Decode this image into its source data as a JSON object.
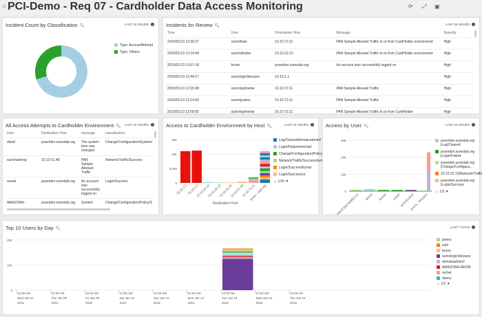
{
  "header": {
    "title": "PCI-Demo - Req 07 - Cardholder Data Access Monitoring",
    "icons": [
      "star-icon",
      "refresh-icon",
      "fullscreen-icon",
      "share-icon"
    ]
  },
  "incident_count": {
    "title": "Incident Count by Classification",
    "range": "LAST 24 HOURS",
    "chart_data": {
      "type": "pie",
      "donut": true,
      "slices": [
        {
          "label": "Type: Access/Attempt",
          "value": 70,
          "color": "#a6cee3"
        },
        {
          "label": "Type: Others",
          "value": 30,
          "color": "#2ca02c"
        }
      ]
    }
  },
  "incidents": {
    "title": "Incidents for Review",
    "range": "LAST 24 HOURS",
    "columns": [
      "Time",
      "User",
      "Destination Host",
      "Message",
      "Severity"
    ],
    "rows": [
      [
        "2015/01/13 13:29:27",
        "sumo\\ltran",
        "10.10.72.11",
        "PAN Sample Allowed Traffic to or from CardHolder environment",
        "High"
      ],
      [
        "2015/01/13 13:14:49",
        "sumo\\dhuber",
        "10.10.22.13",
        "PAN Sample Allowed Traffic to or from CardHolder environment",
        "High"
      ],
      [
        "2015/01/13 13:07:18",
        "bruno",
        "poseidon.sumolab.org",
        "An account was successfully logged on",
        "High"
      ],
      [
        "2015/01/13 12:44:17",
        "sumologic\\blozano",
        "10.10.1.1",
        "",
        "High"
      ],
      [
        "2015/01/13 12:29:48",
        "sumo\\kpimente",
        "10.10.72.11",
        "PAN Sample Allowed Traffic",
        "High"
      ],
      [
        "2015/01/13 12:14:56",
        "sumo\\jcarlos",
        "10.10.72.11",
        "PAN Sample Allowed Traffic",
        "High"
      ],
      [
        "2015/01/13 11:59:55",
        "sumo\\kpimente",
        "10.10.72.11",
        "PAN Sample Allowed Traffic to or from CardHolder",
        "High"
      ]
    ]
  },
  "attempts": {
    "title": "All Access Attempts to Cardholder Environment",
    "range": "LAST 24 HOURS",
    "columns": [
      "User",
      "Destination Host",
      "message",
      "classification"
    ],
    "rows": [
      [
        "david",
        "poseidon.sumolab.org",
        "The system time was changed",
        "Change/Configuration/System/"
      ],
      [
        "sumo\\atseng",
        "10.10.51.48",
        "PAN Sample Allowed Traffic",
        "Network/Traffic/Success"
      ],
      [
        "russel",
        "poseidon.sumolab.org",
        "An account was successfully logged on",
        "Login/Success"
      ],
      [
        "AMAZONA-",
        "poseidon.sumolab.org",
        "System",
        "Change/Configuration/Policy/S"
      ]
    ]
  },
  "by_host": {
    "title": "Access to Cardholder Environment by Host",
    "range": "LAST 24 HOURS",
    "pager": "1/10",
    "chart_data": {
      "type": "bar",
      "stacked": true,
      "xlabel": "Destination Host",
      "ylim": [
        0,
        15000
      ],
      "yticks": [
        "0",
        "5,000",
        "10K",
        "15K"
      ],
      "ytick_values": [
        0,
        5000,
        10000,
        15000
      ],
      "categories": [
        "10.10.1.1",
        "10.10.1.2",
        "10.10.20.13",
        "10.10.22.13",
        "10.10.22.25",
        "10.10.51.48",
        "10.10.72.11",
        "posei...olab.org"
      ],
      "legend": [
        {
          "name": "Log/Cleared/domainadmin2",
          "color": "#1f77b4"
        },
        {
          "name": "Login/Failure/michael",
          "color": "#aec7e8"
        },
        {
          "name": "Change/Configuration/Policy/SuccessA...",
          "color": "#2ca02c"
        },
        {
          "name": "Network/Traffic/Success/sumo\\dhuber",
          "color": "#98df8a"
        },
        {
          "name": "Login/Success/kumar",
          "color": "#ff7f0e"
        },
        {
          "name": "Login/Success/uc",
          "color": "#ffbb78"
        }
      ],
      "bars": [
        [
          {
            "v": 11000,
            "c": "#e8120c"
          }
        ],
        [
          {
            "v": 11200,
            "c": "#e8120c"
          }
        ],
        [
          {
            "v": 300,
            "c": "#9edae5"
          }
        ],
        [
          {
            "v": 300,
            "c": "#c5e8b7"
          }
        ],
        [
          {
            "v": 300,
            "c": "#fdd0a2"
          }
        ],
        [
          {
            "v": 400,
            "c": "#f4b183"
          }
        ],
        [
          {
            "v": 600,
            "c": "#ff9896"
          },
          {
            "v": 500,
            "c": "#c5b0d5"
          },
          {
            "v": 400,
            "c": "#98df8a"
          },
          {
            "v": 400,
            "c": "#2ca02c"
          }
        ],
        [
          {
            "v": 1200,
            "c": "#1f77b4"
          },
          {
            "v": 700,
            "c": "#ffbb78"
          },
          {
            "v": 700,
            "c": "#ff7f0e"
          },
          {
            "v": 800,
            "c": "#6a3d9a"
          },
          {
            "v": 700,
            "c": "#98df8a"
          },
          {
            "v": 900,
            "c": "#2ca02c"
          },
          {
            "v": 700,
            "c": "#aec7e8"
          },
          {
            "v": 900,
            "c": "#e31a1c"
          },
          {
            "v": 800,
            "c": "#ff9896"
          },
          {
            "v": 700,
            "c": "#c5b0d5"
          },
          {
            "v": 800,
            "c": "#1f77b4"
          },
          {
            "v": 600,
            "c": "#9edae5"
          },
          {
            "v": 800,
            "c": "#1f77b4"
          },
          {
            "v": 700,
            "c": "#ff9896"
          }
        ]
      ]
    }
  },
  "by_user": {
    "title": "Access by User",
    "range": "LAST 24 HOURS",
    "pager": "1/3",
    "chart_data": {
      "type": "bar",
      "stacked": true,
      "ylim": [
        0,
        30000
      ],
      "yticks": [
        "0",
        "10K",
        "20K",
        "30K"
      ],
      "ytick_values": [
        0,
        10000,
        20000,
        30000
      ],
      "categories": [
        "AMAZONA-9G8EC1S",
        "danny",
        "kumar",
        "russel",
        "sumo\\jcarlos",
        "sumol...\\blozano"
      ],
      "legend": [
        {
          "name": "poseidon.sumolab.org |Log/Cleared",
          "color": "#a6cee3"
        },
        {
          "name": "poseidon.sumolab.org |Login/Failure",
          "color": "#1f9e1f"
        },
        {
          "name": "poseidon.sumolab.org |Change/Configura...",
          "color": "#b2df8a"
        },
        {
          "name": "10.10.22.13|Network/Traffic/Success",
          "color": "#ff7f0e"
        },
        {
          "name": "poseidon.sumolab.org |Login/Success",
          "color": "#ffbb78"
        }
      ],
      "bars": [
        [
          {
            "v": 500,
            "c": "#b2df8a"
          }
        ],
        [
          {
            "v": 800,
            "c": "#a6cee3"
          }
        ],
        [
          {
            "v": 300,
            "c": "#2ca02c"
          }
        ],
        [
          {
            "v": 300,
            "c": "#2ca02c"
          }
        ],
        [
          {
            "v": 300,
            "c": "#6a3d9a"
          }
        ],
        [
          {
            "v": 11000,
            "c": "#c5b0d5"
          },
          {
            "v": 11500,
            "c": "#ff9896"
          }
        ]
      ]
    }
  },
  "top_users": {
    "title": "Top 10 Users by Day",
    "range": "LAST 7 DAYS",
    "pager": "1/2",
    "chart_data": {
      "type": "bar",
      "stacked": true,
      "ylim": [
        0,
        20000
      ],
      "yticks": [
        "0",
        "10K",
        "20K"
      ],
      "ytick_values": [
        0,
        10000,
        20000
      ],
      "x": [
        [
          "12:00 AM",
          "Wed Jan 07",
          "2015"
        ],
        [
          "12:00 AM",
          "Thu Jan 08",
          "2015"
        ],
        [
          "12:00 AM",
          "Fri Jan 09",
          "2015"
        ],
        [
          "12:00 AM",
          "Sat Jan 10",
          "2015"
        ],
        [
          "12:00 AM",
          "Sun Jan 11",
          "2015"
        ],
        [
          "12:00 AM",
          "Mon Jan 12",
          "2015"
        ],
        [
          "12:00 AM",
          "Tue Jan 13",
          "2015"
        ],
        [
          "12:00 AM",
          "Wed Jan 14",
          "2015"
        ],
        [
          "12:00 AM",
          "Thu Jan 15",
          "2015"
        ]
      ],
      "legend": [
        {
          "name": "james",
          "color": "#98df8a"
        },
        {
          "name": "rishi",
          "color": "#ff7f0e"
        },
        {
          "name": "bruno",
          "color": "#ffbb78"
        },
        {
          "name": "sumologic\\blozano",
          "color": "#6a3d9a"
        },
        {
          "name": "domainadmin2",
          "color": "#c5b0d5"
        },
        {
          "name": "AMAZONA-RE035",
          "color": "#e31a1c"
        },
        {
          "name": "rachel",
          "color": "#ff9896"
        },
        {
          "name": "danny",
          "color": "#17becf"
        }
      ],
      "bar_index": 6,
      "bar": [
        {
          "v": 12500,
          "c": "#6a3d9a"
        },
        {
          "v": 700,
          "c": "#c5b0d5"
        },
        {
          "v": 400,
          "c": "#e31a1c"
        },
        {
          "v": 400,
          "c": "#ff9896"
        },
        {
          "v": 500,
          "c": "#9edae5"
        },
        {
          "v": 500,
          "c": "#c7e9c0"
        },
        {
          "v": 400,
          "c": "#2ca02c"
        },
        {
          "v": 400,
          "c": "#98df8a"
        },
        {
          "v": 500,
          "c": "#ffbb78"
        },
        {
          "v": 300,
          "c": "#ff7f0e"
        }
      ]
    }
  }
}
